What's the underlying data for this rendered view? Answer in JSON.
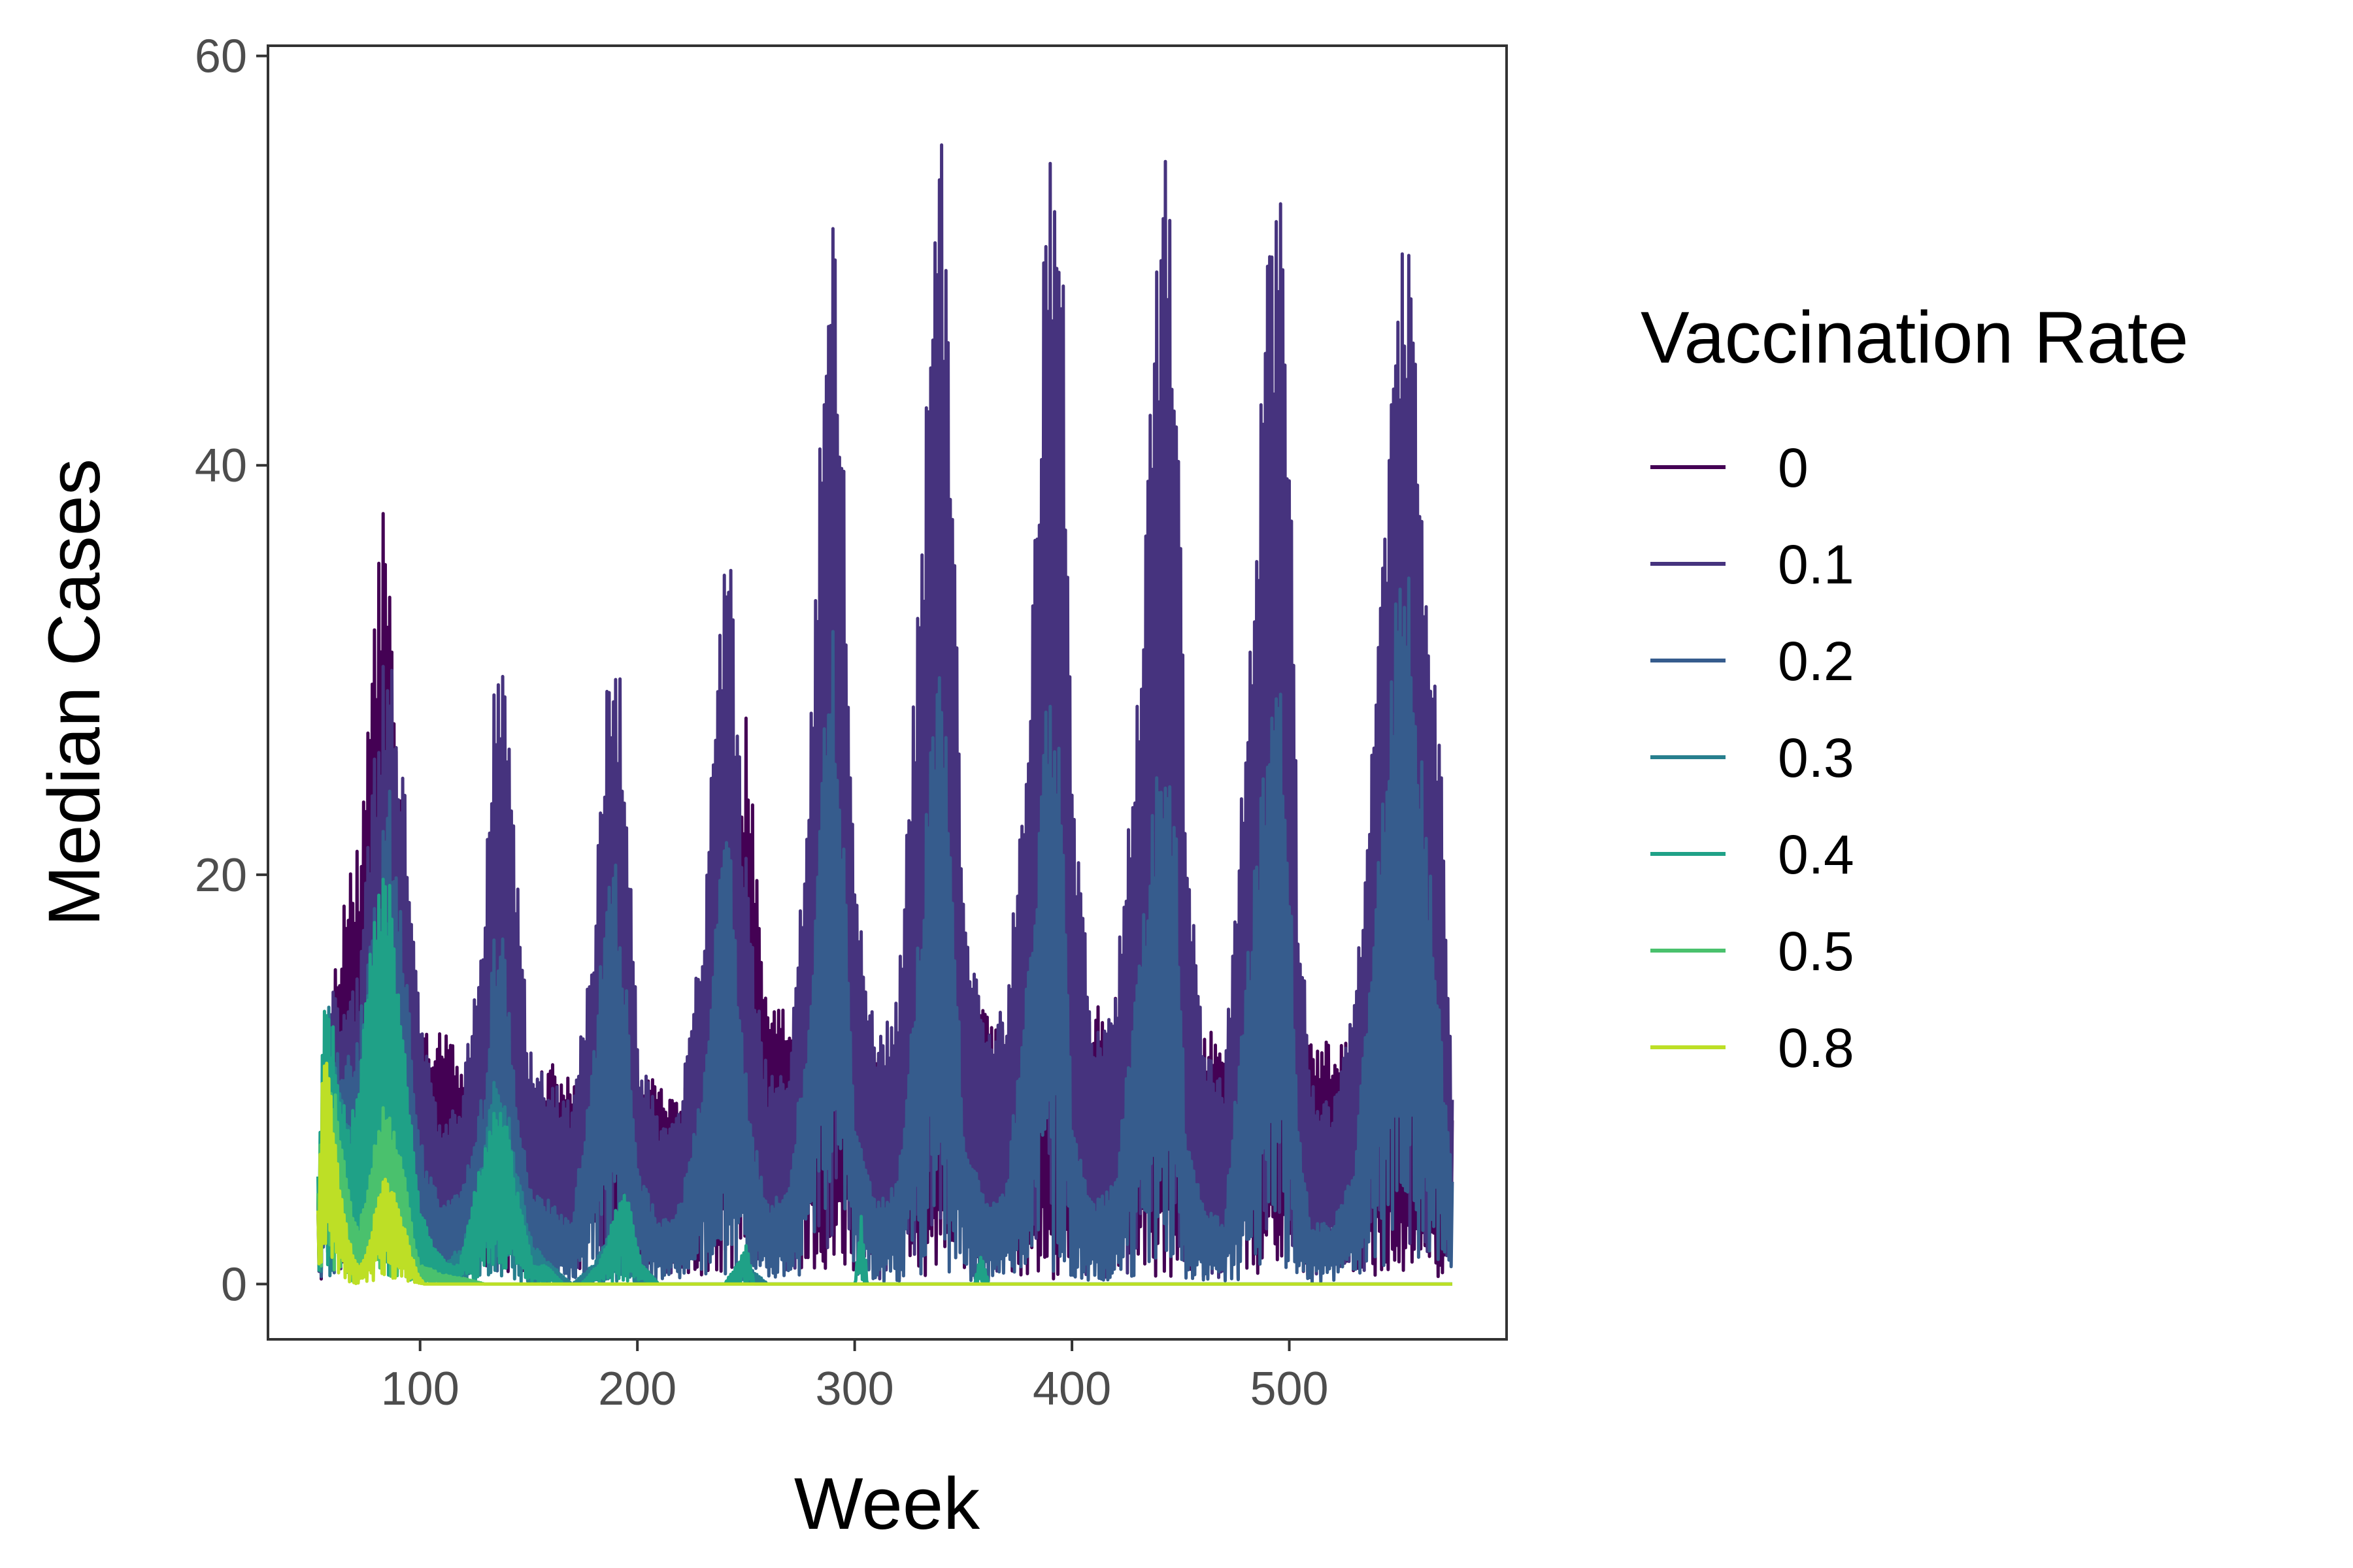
{
  "chart_data": {
    "type": "line",
    "title": "",
    "xlabel": "Week",
    "ylabel": "Median Cases",
    "xlim": [
      30,
      600
    ],
    "ylim": [
      -2.7,
      60.5
    ],
    "xticks": [
      100,
      200,
      300,
      400,
      500
    ],
    "yticks": [
      0,
      20,
      40,
      60
    ],
    "grid": false,
    "legend": {
      "title": "Vaccination Rate",
      "position": "right"
    },
    "series": [
      {
        "name": "0",
        "color": "#440154",
        "x": [
          53,
          60,
          66,
          72,
          78,
          81,
          84,
          87,
          90,
          93,
          96,
          100,
          105,
          110,
          115,
          120,
          130,
          140,
          150,
          160,
          170,
          180,
          190,
          200,
          210,
          220,
          230,
          240,
          250,
          260,
          270,
          280,
          290,
          300,
          330,
          350,
          380,
          420,
          450,
          480,
          520,
          550,
          575
        ],
        "y": [
          5,
          15,
          20,
          22,
          30,
          37,
          38.5,
          35,
          28,
          20,
          16,
          13,
          12,
          13,
          12,
          11,
          12,
          11,
          10,
          11,
          10,
          10,
          11,
          10,
          10,
          9,
          12,
          13,
          28,
          14,
          14,
          13,
          14,
          13,
          12,
          14,
          12,
          14,
          12,
          13,
          12,
          12,
          8
        ]
      },
      {
        "name": "0.1",
        "color": "#46337e",
        "x": [
          53,
          60,
          66,
          72,
          78,
          82,
          86,
          90,
          96,
          102,
          110,
          120,
          130,
          134,
          138,
          142,
          150,
          160,
          170,
          180,
          186,
          190,
          194,
          200,
          210,
          220,
          230,
          238,
          242,
          246,
          252,
          260,
          270,
          280,
          286,
          290,
          294,
          300,
          310,
          320,
          330,
          336,
          340,
          344,
          350,
          360,
          370,
          380,
          388,
          392,
          396,
          400,
          410,
          420,
          430,
          440,
          444,
          448,
          452,
          460,
          470,
          480,
          490,
          496,
          500,
          504,
          510,
          520,
          530,
          540,
          550,
          554,
          558,
          565,
          570,
          575
        ],
        "y": [
          5,
          15,
          14,
          16,
          25,
          30,
          33,
          28,
          20,
          12,
          8,
          10,
          20,
          29,
          31,
          25,
          12,
          10,
          9,
          18,
          29,
          32,
          28,
          12,
          8,
          9,
          18,
          32,
          38,
          28,
          18,
          10,
          11,
          28,
          50,
          55,
          45,
          20,
          12,
          14,
          35,
          52,
          56,
          45,
          20,
          12,
          14,
          28,
          54,
          57.5,
          50,
          25,
          12,
          14,
          30,
          52,
          56,
          48,
          25,
          12,
          10,
          28,
          50,
          53,
          44,
          20,
          10,
          9,
          14,
          30,
          50,
          52.5,
          45,
          33,
          25,
          9
        ]
      },
      {
        "name": "0.2",
        "color": "#365c8d",
        "x": [
          53,
          60,
          66,
          72,
          78,
          82,
          86,
          90,
          96,
          102,
          110,
          120,
          130,
          134,
          138,
          142,
          150,
          160,
          170,
          180,
          186,
          190,
          194,
          200,
          210,
          220,
          230,
          238,
          242,
          246,
          252,
          260,
          270,
          280,
          286,
          290,
          294,
          300,
          310,
          320,
          330,
          336,
          340,
          344,
          350,
          360,
          370,
          380,
          388,
          392,
          396,
          400,
          410,
          420,
          430,
          440,
          444,
          448,
          452,
          460,
          470,
          480,
          490,
          496,
          500,
          504,
          510,
          520,
          530,
          540,
          550,
          554,
          558,
          565,
          570,
          575
        ],
        "y": [
          4,
          12,
          11,
          13,
          18,
          22,
          25,
          20,
          12,
          6,
          4,
          5,
          10,
          17,
          18,
          12,
          5,
          4,
          3,
          12,
          20,
          21,
          16,
          6,
          3,
          4,
          10,
          20,
          23,
          16,
          8,
          4,
          5,
          15,
          28,
          32,
          25,
          8,
          4,
          5,
          18,
          29,
          31,
          24,
          8,
          4,
          5,
          16,
          28,
          30,
          24,
          8,
          4,
          5,
          16,
          26,
          27,
          22,
          8,
          4,
          3,
          15,
          28,
          29,
          22,
          8,
          3,
          3,
          6,
          20,
          35,
          36.5,
          30,
          20,
          12,
          5
        ]
      },
      {
        "name": "0.3",
        "color": "#277f8e",
        "x": [
          53,
          58,
          64,
          70,
          76,
          80,
          84,
          88,
          94,
          100,
          110,
          120,
          128,
          134,
          140,
          146,
          152,
          160,
          170,
          180,
          190,
          200,
          210,
          220,
          230,
          240,
          250,
          260,
          270,
          280,
          290,
          300,
          350,
          400,
          450,
          500,
          550,
          575
        ],
        "y": [
          5,
          14,
          10,
          8,
          15,
          18,
          19,
          15,
          8,
          3,
          1,
          2,
          6,
          10,
          9,
          5,
          2,
          1,
          0,
          1,
          3,
          1,
          0,
          0,
          0,
          0,
          1,
          0,
          0,
          0,
          0,
          0,
          0,
          0,
          0,
          0,
          0,
          0
        ]
      },
      {
        "name": "0.4",
        "color": "#1fa187",
        "x": [
          53,
          56,
          60,
          64,
          68,
          72,
          76,
          80,
          84,
          88,
          92,
          96,
          100,
          106,
          112,
          118,
          124,
          128,
          132,
          136,
          140,
          144,
          148,
          152,
          158,
          166,
          174,
          182,
          186,
          190,
          194,
          198,
          202,
          210,
          220,
          230,
          240,
          246,
          250,
          254,
          260,
          280,
          300,
          303,
          306,
          320,
          340,
          355,
          358,
          362,
          400,
          450,
          500,
          550,
          575
        ],
        "y": [
          6,
          14,
          13,
          9,
          8,
          11,
          15,
          20,
          21,
          18,
          14,
          8,
          4,
          2,
          1,
          1,
          4,
          6,
          8,
          9,
          8,
          5,
          3,
          1,
          1,
          0,
          0,
          1,
          2,
          4,
          5,
          3,
          1,
          0,
          0,
          0,
          0,
          1,
          2,
          0,
          0,
          0,
          0,
          3.5,
          0,
          0,
          0,
          0,
          1.5,
          0,
          0,
          0,
          0,
          0,
          0
        ]
      },
      {
        "name": "0.5",
        "color": "#4ac16d",
        "x": [
          53,
          56,
          60,
          64,
          68,
          72,
          76,
          80,
          84,
          88,
          92,
          96,
          100,
          110,
          120,
          130,
          140,
          150,
          200,
          300,
          400,
          500,
          575
        ],
        "y": [
          5,
          11,
          10,
          7,
          4,
          3,
          5,
          8,
          9.5,
          8,
          6,
          3,
          1,
          0.5,
          0.3,
          0,
          0,
          0,
          0,
          0,
          0,
          0,
          0
        ]
      },
      {
        "name": "0.8",
        "color": "#bddf26",
        "x": [
          53,
          55,
          57,
          60,
          63,
          66,
          69,
          72,
          75,
          78,
          81,
          84,
          87,
          90,
          93,
          96,
          99,
          102,
          150,
          200,
          300,
          400,
          500,
          575
        ],
        "y": [
          4,
          10,
          12,
          8,
          5,
          3,
          1.5,
          1,
          1.5,
          3,
          5,
          5.5,
          5,
          4,
          3,
          1.5,
          0.5,
          0,
          0,
          0,
          0,
          0,
          0,
          0
        ]
      }
    ]
  }
}
